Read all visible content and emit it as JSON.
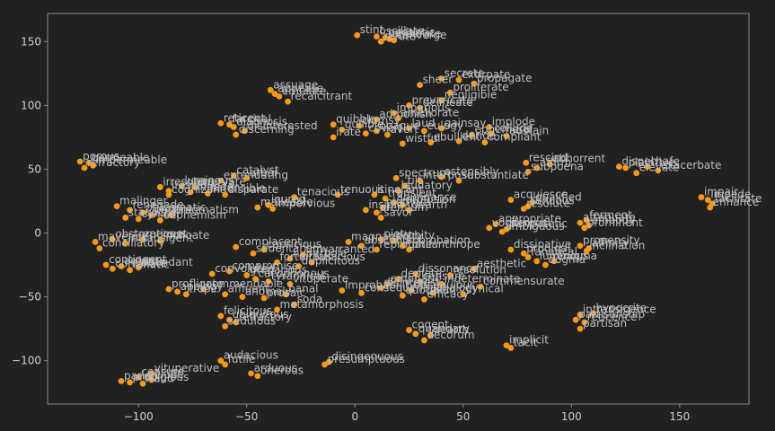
{
  "chart_data": {
    "type": "scatter",
    "title": "",
    "xlabel": "",
    "ylabel": "",
    "xlim": [
      -142,
      182
    ],
    "ylim": [
      -134,
      172
    ],
    "grid": false,
    "x_ticks": [
      -100,
      -50,
      0,
      50,
      100,
      150
    ],
    "y_ticks": [
      -100,
      -50,
      0,
      50,
      100,
      150
    ],
    "tick_labels_x": [
      "−100",
      "−50",
      "0",
      "50",
      "100",
      "150"
    ],
    "tick_labels_y": [
      "−100",
      "−50",
      "0",
      "50",
      "100",
      "150"
    ],
    "colors": {
      "background": "#212121",
      "axes": "#8a8a8a",
      "point": "#f39a1b",
      "text": "#bdbdbd"
    },
    "points": [
      {
        "x": 1,
        "y": 155,
        "label": "stint"
      },
      {
        "x": 10,
        "y": 154,
        "label": "oscillate"
      },
      {
        "x": 14,
        "y": 153,
        "label": "pedantic"
      },
      {
        "x": 16,
        "y": 152,
        "label": "obdurate"
      },
      {
        "x": 18,
        "y": 151,
        "label": "converge"
      },
      {
        "x": 12,
        "y": 150,
        "label": "refute"
      },
      {
        "x": -39,
        "y": 112,
        "label": "assuage"
      },
      {
        "x": -37,
        "y": 109,
        "label": "appease"
      },
      {
        "x": -35,
        "y": 107,
        "label": "emulate"
      },
      {
        "x": -31,
        "y": 103,
        "label": "recalcitrant"
      },
      {
        "x": -62,
        "y": 86,
        "label": "reticent"
      },
      {
        "x": -58,
        "y": 85,
        "label": "farcical"
      },
      {
        "x": -56,
        "y": 83,
        "label": "diagnosis"
      },
      {
        "x": -51,
        "y": 80,
        "label": "disinterested"
      },
      {
        "x": -55,
        "y": 77,
        "label": "discerning"
      },
      {
        "x": 30,
        "y": 116,
        "label": "sheer"
      },
      {
        "x": 40,
        "y": 121,
        "label": "secrete"
      },
      {
        "x": 48,
        "y": 120,
        "label": "extirpate"
      },
      {
        "x": 55,
        "y": 117,
        "label": "propagate"
      },
      {
        "x": 44,
        "y": 110,
        "label": "proliferate"
      },
      {
        "x": 40,
        "y": 104,
        "label": "negligible"
      },
      {
        "x": 25,
        "y": 100,
        "label": "prevaricate"
      },
      {
        "x": 30,
        "y": 98,
        "label": "delineate"
      },
      {
        "x": 18,
        "y": 94,
        "label": "imperious"
      },
      {
        "x": 20,
        "y": 90,
        "label": "ameliorate"
      },
      {
        "x": 10,
        "y": 89,
        "label": "admonish"
      },
      {
        "x": -10,
        "y": 85,
        "label": "quibble"
      },
      {
        "x": 2,
        "y": 84,
        "label": "clumsy"
      },
      {
        "x": -6,
        "y": 81,
        "label": "gullible"
      },
      {
        "x": 10,
        "y": 80,
        "label": "opaque"
      },
      {
        "x": 5,
        "y": 78,
        "label": "covert"
      },
      {
        "x": 15,
        "y": 77,
        "label": "avert"
      },
      {
        "x": -10,
        "y": 75,
        "label": "irate"
      },
      {
        "x": 25,
        "y": 82,
        "label": "laud"
      },
      {
        "x": 32,
        "y": 80,
        "label": "eulogy"
      },
      {
        "x": 40,
        "y": 82,
        "label": "gainsay"
      },
      {
        "x": 62,
        "y": 83,
        "label": "implode"
      },
      {
        "x": 54,
        "y": 77,
        "label": "ephemeral"
      },
      {
        "x": 63,
        "y": 78,
        "label": "collude"
      },
      {
        "x": 70,
        "y": 76,
        "label": "abstain"
      },
      {
        "x": 22,
        "y": 70,
        "label": "wistful"
      },
      {
        "x": 35,
        "y": 71,
        "label": "ebullient"
      },
      {
        "x": 48,
        "y": 72,
        "label": "deride"
      },
      {
        "x": 60,
        "y": 71,
        "label": "compliant"
      },
      {
        "x": -127,
        "y": 56,
        "label": "porous"
      },
      {
        "x": -123,
        "y": 55,
        "label": "permeable"
      },
      {
        "x": -121,
        "y": 53,
        "label": "impermeable"
      },
      {
        "x": -125,
        "y": 51,
        "label": "refractory"
      },
      {
        "x": -56,
        "y": 45,
        "label": "catalyst"
      },
      {
        "x": -50,
        "y": 43,
        "label": "arbor"
      },
      {
        "x": -62,
        "y": 41,
        "label": "extenuating"
      },
      {
        "x": -90,
        "y": 36,
        "label": "irresolute"
      },
      {
        "x": -80,
        "y": 37,
        "label": "luminous"
      },
      {
        "x": -74,
        "y": 36,
        "label": "enervate"
      },
      {
        "x": -86,
        "y": 33,
        "label": "irascible"
      },
      {
        "x": -76,
        "y": 32,
        "label": "impede"
      },
      {
        "x": -68,
        "y": 31,
        "label": "ostensible"
      },
      {
        "x": -86,
        "y": 30,
        "label": "cognizant"
      },
      {
        "x": -60,
        "y": 30,
        "label": "disparate"
      },
      {
        "x": 19,
        "y": 43,
        "label": "spectrum"
      },
      {
        "x": 30,
        "y": 41,
        "label": "interpose"
      },
      {
        "x": 40,
        "y": 44,
        "label": "ostensibly"
      },
      {
        "x": 48,
        "y": 41,
        "label": "substantiate"
      },
      {
        "x": 23,
        "y": 37,
        "label": "tilt"
      },
      {
        "x": 20,
        "y": 33,
        "label": "laudatory"
      },
      {
        "x": 79,
        "y": 55,
        "label": "rescind"
      },
      {
        "x": 90,
        "y": 54,
        "label": "abhorrent"
      },
      {
        "x": 84,
        "y": 51,
        "label": "affirm"
      },
      {
        "x": 80,
        "y": 48,
        "label": "subpoena"
      },
      {
        "x": 122,
        "y": 52,
        "label": "dispel"
      },
      {
        "x": 125,
        "y": 51,
        "label": "plaintive"
      },
      {
        "x": 135,
        "y": 52,
        "label": "chafe"
      },
      {
        "x": 140,
        "y": 49,
        "label": "exacerbate"
      },
      {
        "x": 130,
        "y": 47,
        "label": "elevate"
      },
      {
        "x": 160,
        "y": 28,
        "label": "impair"
      },
      {
        "x": 163,
        "y": 26,
        "label": "impede"
      },
      {
        "x": 165,
        "y": 23,
        "label": "facilitate"
      },
      {
        "x": 164,
        "y": 20,
        "label": "enhance"
      },
      {
        "x": -40,
        "y": 22,
        "label": "inured"
      },
      {
        "x": -45,
        "y": 20,
        "label": "malleable"
      },
      {
        "x": -38,
        "y": 19,
        "label": "impervious"
      },
      {
        "x": -28,
        "y": 28,
        "label": "tenacious"
      },
      {
        "x": -8,
        "y": 30,
        "label": "tenuous"
      },
      {
        "x": 9,
        "y": 30,
        "label": "itinerant"
      },
      {
        "x": 14,
        "y": 27,
        "label": "transient"
      },
      {
        "x": 18,
        "y": 24,
        "label": "abundance"
      },
      {
        "x": 22,
        "y": 22,
        "label": "profusion"
      },
      {
        "x": 13,
        "y": 20,
        "label": "plethora"
      },
      {
        "x": 25,
        "y": 18,
        "label": "dearth"
      },
      {
        "x": 5,
        "y": 18,
        "label": "insipid"
      },
      {
        "x": 10,
        "y": 16,
        "label": "premium"
      },
      {
        "x": 12,
        "y": 12,
        "label": "savor"
      },
      {
        "x": 72,
        "y": 26,
        "label": "acquiesce"
      },
      {
        "x": 82,
        "y": 24,
        "label": "qualified"
      },
      {
        "x": 80,
        "y": 21,
        "label": "tenuous"
      },
      {
        "x": 78,
        "y": 19,
        "label": "resolute"
      },
      {
        "x": -110,
        "y": 21,
        "label": "malinger"
      },
      {
        "x": -104,
        "y": 18,
        "label": "renegade"
      },
      {
        "x": -98,
        "y": 16,
        "label": "phlegmatic"
      },
      {
        "x": -94,
        "y": 14,
        "label": "pedant"
      },
      {
        "x": -85,
        "y": 14,
        "label": "pragmatism"
      },
      {
        "x": -106,
        "y": 12,
        "label": "staunch"
      },
      {
        "x": -100,
        "y": 11,
        "label": "cynical"
      },
      {
        "x": -90,
        "y": 10,
        "label": "euphemism"
      },
      {
        "x": 65,
        "y": 7,
        "label": "appropriate"
      },
      {
        "x": 62,
        "y": 4,
        "label": "vociferous"
      },
      {
        "x": 70,
        "y": 3,
        "label": "peripatetic"
      },
      {
        "x": 68,
        "y": 1,
        "label": "ambiguous"
      },
      {
        "x": 107,
        "y": 10,
        "label": "ferment"
      },
      {
        "x": 104,
        "y": 8,
        "label": "attenuate"
      },
      {
        "x": 108,
        "y": 6,
        "label": "embody"
      },
      {
        "x": 106,
        "y": 4,
        "label": "prominent"
      },
      {
        "x": -120,
        "y": -7,
        "label": "maverick"
      },
      {
        "x": -112,
        "y": -5,
        "label": "obstreperous"
      },
      {
        "x": -106,
        "y": -8,
        "label": "intransigent"
      },
      {
        "x": -98,
        "y": -5,
        "label": "reticent"
      },
      {
        "x": -90,
        "y": -6,
        "label": "inchoate"
      },
      {
        "x": -118,
        "y": -12,
        "label": "conciliatory"
      },
      {
        "x": -3,
        "y": -7,
        "label": "magnanimity"
      },
      {
        "x": 12,
        "y": -5,
        "label": "piety"
      },
      {
        "x": 18,
        "y": -6,
        "label": "probity"
      },
      {
        "x": 3,
        "y": -10,
        "label": "abscond"
      },
      {
        "x": 22,
        "y": -10,
        "label": "approbation"
      },
      {
        "x": 25,
        "y": -13,
        "label": "philanthrope"
      },
      {
        "x": 10,
        "y": -13,
        "label": "reprobate"
      },
      {
        "x": 72,
        "y": -13,
        "label": "dissipative"
      },
      {
        "x": 78,
        "y": -16,
        "label": "prodigal"
      },
      {
        "x": 80,
        "y": -19,
        "label": "fanatical"
      },
      {
        "x": 84,
        "y": -22,
        "label": "luminous"
      },
      {
        "x": 92,
        "y": -22,
        "label": "enigma"
      },
      {
        "x": 88,
        "y": -25,
        "label": "dogma"
      },
      {
        "x": 104,
        "y": -10,
        "label": "propensity"
      },
      {
        "x": 108,
        "y": -12,
        "label": "affinity"
      },
      {
        "x": 107,
        "y": -14,
        "label": "inclination"
      },
      {
        "x": -55,
        "y": -11,
        "label": "complacent"
      },
      {
        "x": -42,
        "y": -13,
        "label": "capricious"
      },
      {
        "x": -47,
        "y": -16,
        "label": "sedentarism"
      },
      {
        "x": -24,
        "y": -17,
        "label": "unwarranted"
      },
      {
        "x": -30,
        "y": -20,
        "label": "hyperbole"
      },
      {
        "x": -36,
        "y": -23,
        "label": "fortuitous"
      },
      {
        "x": -20,
        "y": -23,
        "label": "fallacious"
      },
      {
        "x": -26,
        "y": -26,
        "label": "duplicitous"
      },
      {
        "x": -115,
        "y": -25,
        "label": "contingent"
      },
      {
        "x": -108,
        "y": -26,
        "label": "ardent"
      },
      {
        "x": -100,
        "y": -27,
        "label": "abundant"
      },
      {
        "x": -112,
        "y": -28,
        "label": "conciliate"
      },
      {
        "x": -104,
        "y": -29,
        "label": "fanatic"
      },
      {
        "x": -66,
        "y": -32,
        "label": "convoluted"
      },
      {
        "x": -58,
        "y": -30,
        "label": "compromise"
      },
      {
        "x": -50,
        "y": -33,
        "label": "gregarious"
      },
      {
        "x": -46,
        "y": -36,
        "label": "cacophonous"
      },
      {
        "x": -40,
        "y": -38,
        "label": "tyrannical"
      },
      {
        "x": -30,
        "y": -40,
        "label": "vituperate"
      },
      {
        "x": -86,
        "y": -44,
        "label": "profligate"
      },
      {
        "x": -82,
        "y": -46,
        "label": "apology"
      },
      {
        "x": -78,
        "y": -48,
        "label": "trope"
      },
      {
        "x": -70,
        "y": -44,
        "label": "commendable"
      },
      {
        "x": -60,
        "y": -48,
        "label": "affluent"
      },
      {
        "x": -52,
        "y": -50,
        "label": "anomaly"
      },
      {
        "x": -42,
        "y": -51,
        "label": "prosaic"
      },
      {
        "x": -32,
        "y": -48,
        "label": "banal"
      },
      {
        "x": -28,
        "y": -56,
        "label": "soda"
      },
      {
        "x": -36,
        "y": -60,
        "label": "metamorphosis"
      },
      {
        "x": 28,
        "y": -32,
        "label": "dissonance"
      },
      {
        "x": 44,
        "y": -33,
        "label": "resolution"
      },
      {
        "x": 55,
        "y": -28,
        "label": "aesthetic"
      },
      {
        "x": 20,
        "y": -36,
        "label": "deplete"
      },
      {
        "x": 30,
        "y": -38,
        "label": "censure"
      },
      {
        "x": 15,
        "y": -40,
        "label": "emphatic"
      },
      {
        "x": 40,
        "y": -40,
        "label": "indeterminate"
      },
      {
        "x": 58,
        "y": -42,
        "label": "commensurate"
      },
      {
        "x": 12,
        "y": -43,
        "label": "disinterest"
      },
      {
        "x": 26,
        "y": -45,
        "label": "obsequious"
      },
      {
        "x": 36,
        "y": -47,
        "label": "analogy"
      },
      {
        "x": 50,
        "y": -48,
        "label": "cynical"
      },
      {
        "x": 22,
        "y": -49,
        "label": "quotidian"
      },
      {
        "x": 32,
        "y": -52,
        "label": "efficacy"
      },
      {
        "x": -6,
        "y": -45,
        "label": "improbability"
      },
      {
        "x": 3,
        "y": -47,
        "label": "consequential"
      },
      {
        "x": -62,
        "y": -65,
        "label": "felicitous"
      },
      {
        "x": -58,
        "y": -68,
        "label": "ubiquitous"
      },
      {
        "x": -55,
        "y": -70,
        "label": "refractory"
      },
      {
        "x": -60,
        "y": -73,
        "label": "sedulous"
      },
      {
        "x": 25,
        "y": -76,
        "label": "cogent"
      },
      {
        "x": 28,
        "y": -79,
        "label": "quandary"
      },
      {
        "x": 35,
        "y": -80,
        "label": "dearth"
      },
      {
        "x": 32,
        "y": -84,
        "label": "decorum"
      },
      {
        "x": 70,
        "y": -88,
        "label": "implicit"
      },
      {
        "x": 72,
        "y": -90,
        "label": "tacit"
      },
      {
        "x": 104,
        "y": -64,
        "label": "intransigence"
      },
      {
        "x": 110,
        "y": -63,
        "label": "hypocrite"
      },
      {
        "x": 102,
        "y": -68,
        "label": "partisanship"
      },
      {
        "x": 106,
        "y": -70,
        "label": "reticence"
      },
      {
        "x": 104,
        "y": -75,
        "label": "partisan"
      },
      {
        "x": -62,
        "y": -100,
        "label": "audacious"
      },
      {
        "x": -60,
        "y": -103,
        "label": "futile"
      },
      {
        "x": -48,
        "y": -110,
        "label": "arduous"
      },
      {
        "x": -45,
        "y": -112,
        "label": "onerous"
      },
      {
        "x": -12,
        "y": -101,
        "label": "disingenuous"
      },
      {
        "x": -14,
        "y": -103,
        "label": "presumptuous"
      },
      {
        "x": -94,
        "y": -110,
        "label": "vituperative"
      },
      {
        "x": -100,
        "y": -113,
        "label": "censure"
      },
      {
        "x": -108,
        "y": -116,
        "label": "pariah"
      },
      {
        "x": -104,
        "y": -117,
        "label": "prodigious"
      },
      {
        "x": -98,
        "y": -118,
        "label": "fraud"
      },
      {
        "x": -94,
        "y": -115,
        "label": "elude"
      }
    ]
  }
}
